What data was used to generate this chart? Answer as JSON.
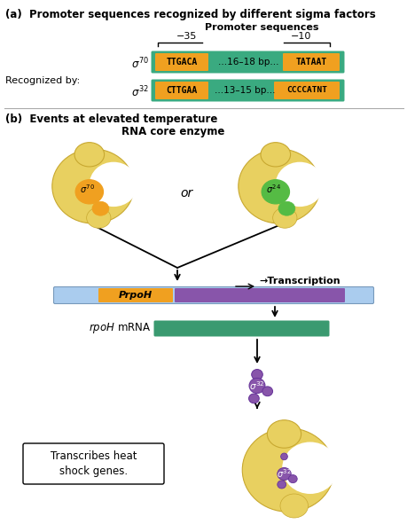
{
  "title_a": "(a)  Promoter sequences recognized by different sigma factors",
  "title_b": "(b)  Events at elevated temperature",
  "promoter_label": "Promoter sequences",
  "minus35": "−35",
  "minus10": "−10",
  "row1_orange1": "TTGACA",
  "row1_middle": "...16–18 bp...",
  "row1_orange2": "TATAAT",
  "row2_orange1": "CTTGAA",
  "row2_middle": "...13–15 bp...",
  "row2_orange2": "CCCCATNT",
  "recognized_by": "Recognized by:",
  "or_text": "or",
  "rna_core_enzyme": "RNA core enzyme",
  "transcription_label": "→Transcription",
  "rpoh_mrna_label": "rpoH mRNA",
  "PrpoH_label": "PrpoH",
  "transcribes_text": "Transcribes heat\nshock genes.",
  "bg_color": "#ffffff",
  "orange_color": "#f0a020",
  "teal_color": "#3aaa80",
  "purple_color": "#8855aa",
  "light_blue_color": "#aaccee",
  "green_mrna_color": "#3a9a70",
  "sigma70_color": "#f0a020",
  "sigma24_color": "#55bb44",
  "sigma32_color": "#8855aa",
  "yellow_color": "#e8d060",
  "yellow_light": "#f0e090",
  "yellow_dark": "#c8a830"
}
